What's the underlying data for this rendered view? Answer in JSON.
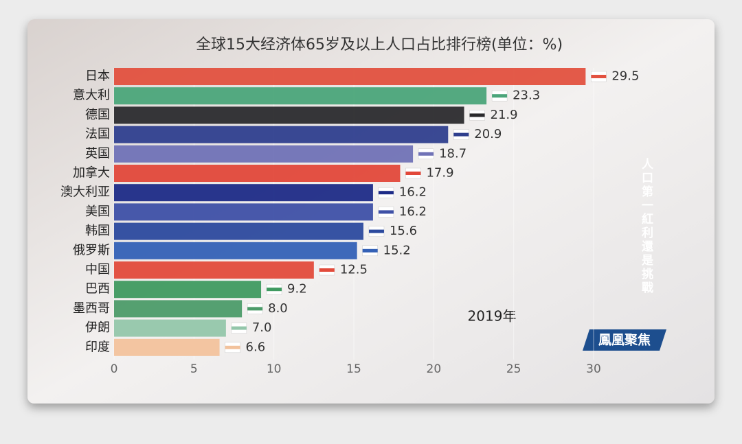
{
  "chart_data": {
    "type": "bar",
    "orientation": "horizontal",
    "title": "全球15大经济体65岁及以上人口占比排行榜(单位：%)",
    "categories": [
      "日本",
      "意大利",
      "德国",
      "法国",
      "英国",
      "加拿大",
      "澳大利亚",
      "美国",
      "韩国",
      "俄罗斯",
      "中国",
      "巴西",
      "墨西哥",
      "伊朗",
      "印度"
    ],
    "values": [
      29.5,
      23.3,
      21.9,
      20.9,
      18.7,
      17.9,
      16.2,
      16.2,
      15.6,
      15.2,
      12.5,
      9.2,
      8.0,
      7.0,
      6.6
    ],
    "value_labels": [
      "29.5",
      "23.3",
      "21.9",
      "20.9",
      "18.7",
      "17.9",
      "16.2",
      "16.2",
      "15.6",
      "15.2",
      "12.5",
      "9.2",
      "8.0",
      "7.0",
      "6.6"
    ],
    "colors": [
      "#e2513f",
      "#4ba57a",
      "#2b2b2e",
      "#2f3f8e",
      "#7072b6",
      "#e2483a",
      "#1d2b87",
      "#3e50a6",
      "#2c4a9e",
      "#3461b6",
      "#e24b3b",
      "#3f9a60",
      "#4c9b69",
      "#93c6aa",
      "#f2c29c"
    ],
    "xlim": [
      0,
      30
    ],
    "xticks": [
      0,
      5,
      10,
      15,
      20,
      25,
      30
    ],
    "annotations": [
      "2019年",
      "人口第一紅利還是挑戰",
      "鳳凰聚焦"
    ]
  }
}
